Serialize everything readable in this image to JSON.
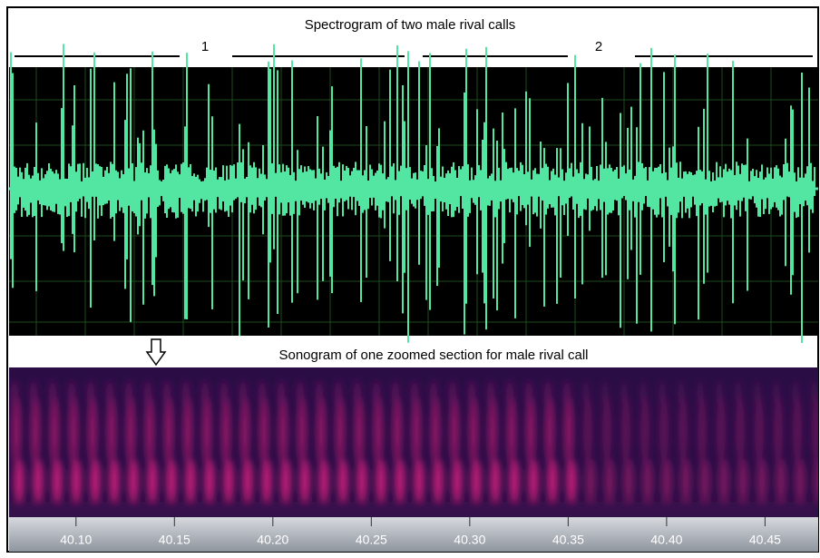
{
  "header": {
    "title": "Spectrogram of two male rival calls",
    "call_markers": [
      "1",
      "2"
    ]
  },
  "zoom_panel": {
    "title": "Sonogram of one zoomed section for male rival call"
  },
  "time_axis": {
    "xlim": [
      40.066,
      40.477
    ],
    "xticks": [
      {
        "value": 40.1,
        "label": "40.10"
      },
      {
        "value": 40.15,
        "label": "40.15"
      },
      {
        "value": 40.2,
        "label": "40.20"
      },
      {
        "value": 40.25,
        "label": "40.25"
      },
      {
        "value": 40.3,
        "label": "40.30"
      },
      {
        "value": 40.35,
        "label": "40.35"
      },
      {
        "value": 40.4,
        "label": "40.40"
      },
      {
        "value": 40.45,
        "label": "40.45"
      }
    ]
  }
}
